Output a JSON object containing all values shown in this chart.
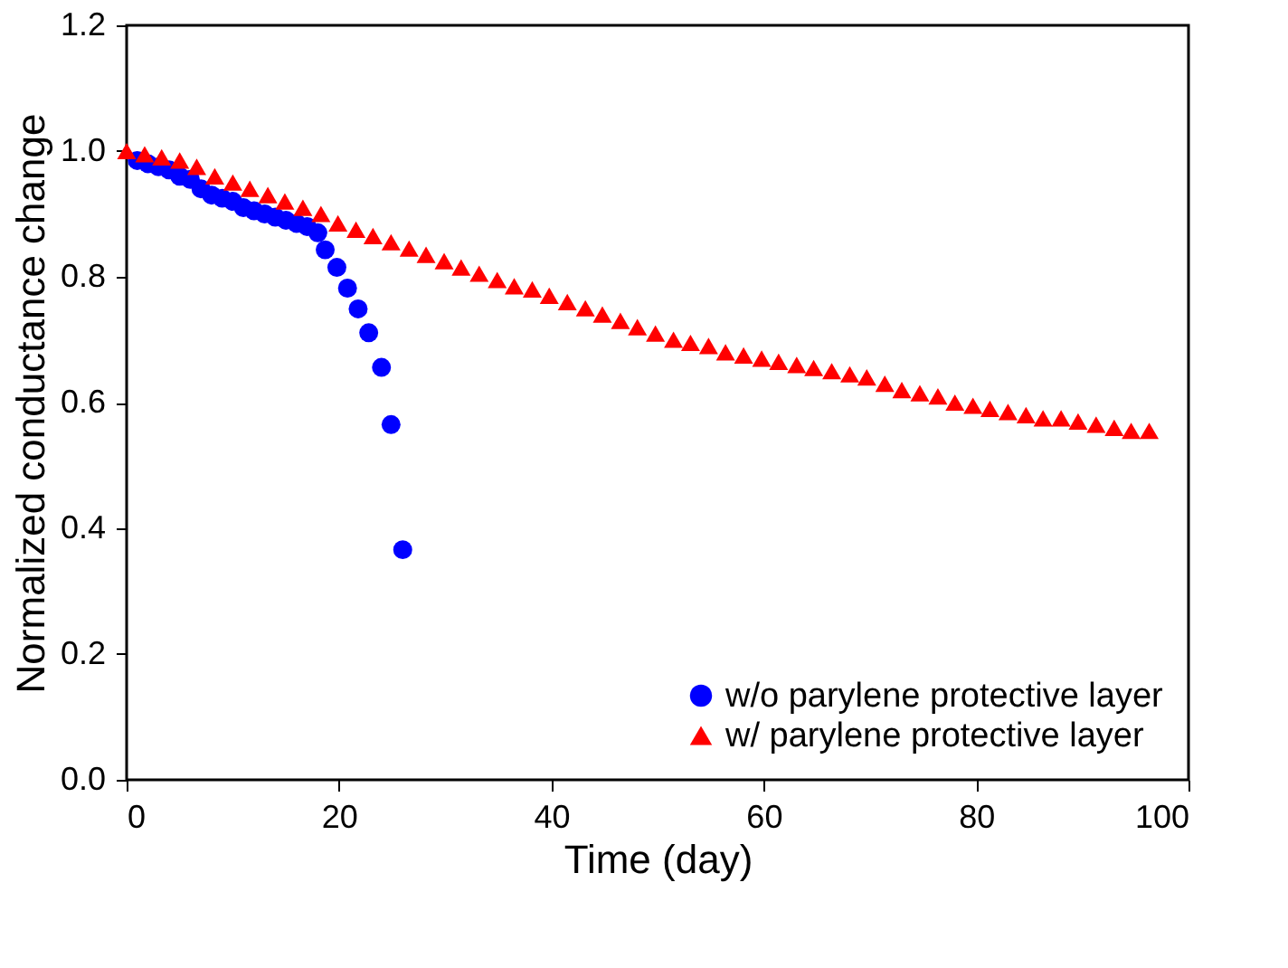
{
  "chart_data": {
    "type": "scatter",
    "xlabel": "Time (day)",
    "ylabel": "Normalized conductance change",
    "xlim": [
      0,
      100
    ],
    "xticks": [
      0,
      20,
      40,
      60,
      80,
      100
    ],
    "ylim": [
      0,
      1.2
    ],
    "yticks": [
      {
        "value": 0,
        "label": "0.0"
      },
      0.2,
      0.4,
      0.6,
      0.8,
      {
        "value": 1,
        "label": "1.0"
      },
      1.2
    ],
    "grid": false,
    "legend": "bottom right",
    "series": [
      {
        "name": "w/o parylene protective layer",
        "color": "#0000ff",
        "marker": "circle",
        "x": [
          1,
          2,
          3,
          4,
          5,
          6,
          7,
          8,
          9,
          10,
          11,
          12,
          13,
          14,
          15,
          16,
          17,
          18,
          18.7,
          19.8,
          20.8,
          21.8,
          22.8,
          24,
          24.9,
          26
        ],
        "values": [
          0.985,
          0.98,
          0.975,
          0.97,
          0.96,
          0.955,
          0.94,
          0.93,
          0.925,
          0.92,
          0.91,
          0.905,
          0.9,
          0.895,
          0.89,
          0.885,
          0.88,
          0.87,
          0.843,
          0.815,
          0.782,
          0.749,
          0.711,
          0.656,
          0.565,
          0.366
        ]
      },
      {
        "name": "w/ parylene protective layer",
        "color": "#ff0000",
        "marker": "triangle",
        "x": [
          0,
          1.7,
          3.3,
          5,
          6.6,
          8.3,
          10,
          11.6,
          13.3,
          14.9,
          16.6,
          18.3,
          19.9,
          21.6,
          23.2,
          24.9,
          26.6,
          28.2,
          29.9,
          31.5,
          33.2,
          34.9,
          36.5,
          38.2,
          39.8,
          41.5,
          43.2,
          44.8,
          46.5,
          48.1,
          49.8,
          51.5,
          53.1,
          54.8,
          56.4,
          58.1,
          59.8,
          61.4,
          63.1,
          64.7,
          66.4,
          68.1,
          69.7,
          71.4,
          73,
          74.7,
          76.4,
          78,
          79.7,
          81.3,
          83,
          84.7,
          86.3,
          88,
          89.6,
          91.3,
          93,
          94.6,
          96.3
        ],
        "values": [
          1.0,
          0.995,
          0.99,
          0.985,
          0.975,
          0.96,
          0.95,
          0.94,
          0.93,
          0.92,
          0.91,
          0.9,
          0.885,
          0.875,
          0.865,
          0.855,
          0.845,
          0.835,
          0.825,
          0.815,
          0.805,
          0.795,
          0.785,
          0.78,
          0.77,
          0.76,
          0.75,
          0.74,
          0.73,
          0.72,
          0.71,
          0.7,
          0.695,
          0.69,
          0.68,
          0.675,
          0.67,
          0.665,
          0.66,
          0.655,
          0.65,
          0.645,
          0.64,
          0.63,
          0.62,
          0.615,
          0.61,
          0.6,
          0.595,
          0.59,
          0.585,
          0.58,
          0.575,
          0.575,
          0.57,
          0.565,
          0.56,
          0.555,
          0.555
        ]
      }
    ]
  }
}
